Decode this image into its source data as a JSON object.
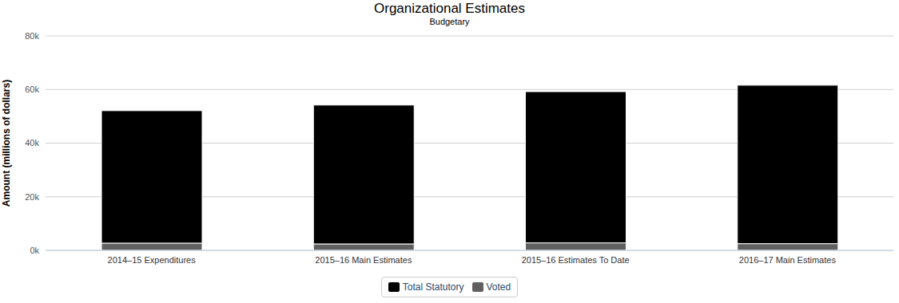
{
  "chart_data": {
    "type": "bar",
    "title": "Organizational Estimates",
    "subtitle": "Budgetary",
    "y_label": "Amount (millions of dollars)",
    "categories": [
      "2014–15 Expenditures",
      "2015–16 Main Estimates",
      "2015–16 Estimates To Date",
      "2016–17 Main Estimates"
    ],
    "series": [
      {
        "name": "Total Statutory",
        "color": "#000000",
        "values": [
          49400,
          51800,
          56400,
          59100
        ]
      },
      {
        "name": "Voted",
        "color": "#606060",
        "values": [
          2700,
          2400,
          2800,
          2500
        ]
      }
    ],
    "stacked": true,
    "ylim": [
      0,
      80000
    ],
    "yticks": [
      {
        "value": 0,
        "label": "0k"
      },
      {
        "value": 20000,
        "label": "20k"
      },
      {
        "value": 40000,
        "label": "40k"
      },
      {
        "value": 60000,
        "label": "60k"
      },
      {
        "value": 80000,
        "label": "80k"
      }
    ],
    "grid": true,
    "legend": "bottom"
  }
}
